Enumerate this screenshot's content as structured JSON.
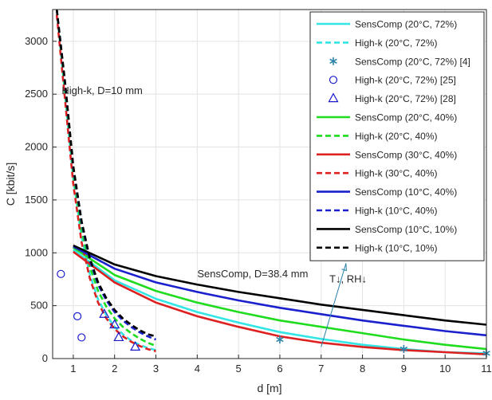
{
  "chart_data": {
    "type": "line",
    "xlabel": "d [m]",
    "ylabel": "C [kbit/s]",
    "xlim": [
      0.5,
      11
    ],
    "ylim": [
      0,
      3300
    ],
    "xticks": [
      1,
      2,
      3,
      4,
      5,
      6,
      7,
      8,
      9,
      10,
      11
    ],
    "yticks": [
      0,
      500,
      1000,
      1500,
      2000,
      2500,
      3000
    ],
    "grid": true,
    "legend_position": "top-right",
    "series": [
      {
        "name": "SensComp (20°C, 72%)",
        "color": "#33e5e5",
        "style": "solid",
        "x": [
          1,
          2,
          3,
          4,
          5,
          6,
          7,
          8,
          9,
          10,
          11
        ],
        "y": [
          1030,
          740,
          565,
          440,
          340,
          250,
          185,
          130,
          90,
          60,
          50
        ]
      },
      {
        "name": "High-k (20°C, 72%)",
        "color": "#33e5e5",
        "style": "dashed",
        "x": [
          0.6,
          0.8,
          1.0,
          1.2,
          1.4,
          1.6,
          1.8,
          2.0,
          2.2,
          2.4,
          2.6,
          2.8,
          3.0
        ],
        "y": [
          3300,
          2500,
          1700,
          1150,
          800,
          560,
          410,
          300,
          230,
          170,
          130,
          100,
          80
        ]
      },
      {
        "name": "SensComp (20°C, 72%) [4]",
        "color": "#2a82a8",
        "style": "star",
        "x": [
          6,
          9,
          11
        ],
        "y": [
          180,
          90,
          50
        ]
      },
      {
        "name": "High-k (20°C, 72%) [25]",
        "color": "#1a1acc",
        "style": "circle",
        "x": [
          0.7,
          1.1,
          1.2
        ],
        "y": [
          800,
          400,
          200
        ]
      },
      {
        "name": "High-k (20°C, 72%) [28]",
        "color": "#1a1acc",
        "style": "triangle",
        "x": [
          1.75,
          2.0,
          2.1,
          2.5
        ],
        "y": [
          420,
          320,
          200,
          110
        ]
      },
      {
        "name": "SensComp (20°C, 40%)",
        "color": "#1fdc1f",
        "style": "solid",
        "x": [
          1,
          2,
          3,
          4,
          5,
          6,
          7,
          8,
          9,
          10,
          11
        ],
        "y": [
          1050,
          790,
          640,
          530,
          440,
          360,
          300,
          240,
          180,
          130,
          90
        ]
      },
      {
        "name": "High-k (20°C, 40%)",
        "color": "#1fdc1f",
        "style": "dashed",
        "x": [
          0.6,
          0.8,
          1.0,
          1.2,
          1.4,
          1.6,
          1.8,
          2.0,
          2.2,
          2.4,
          2.6,
          2.8,
          3.0
        ],
        "y": [
          3300,
          2550,
          1750,
          1220,
          870,
          640,
          490,
          380,
          300,
          240,
          190,
          150,
          120
        ]
      },
      {
        "name": "SensComp (30°C, 40%)",
        "color": "#dd2020",
        "style": "solid",
        "x": [
          1,
          2,
          3,
          4,
          5,
          6,
          7,
          8,
          9,
          10,
          11
        ],
        "y": [
          1010,
          720,
          530,
          400,
          300,
          210,
          150,
          110,
          80,
          60,
          40
        ]
      },
      {
        "name": "High-k (30°C, 40%)",
        "color": "#dd2020",
        "style": "dashed",
        "x": [
          0.6,
          0.8,
          1.0,
          1.2,
          1.4,
          1.6,
          1.8,
          2.0,
          2.2,
          2.4,
          2.6,
          2.8,
          3.0
        ],
        "y": [
          3250,
          2450,
          1650,
          1100,
          760,
          530,
          380,
          280,
          210,
          160,
          120,
          90,
          70
        ]
      },
      {
        "name": "SensComp (10°C, 40%)",
        "color": "#1a20cc",
        "style": "solid",
        "x": [
          1,
          2,
          3,
          4,
          5,
          6,
          7,
          8,
          9,
          10,
          11
        ],
        "y": [
          1060,
          850,
          720,
          630,
          550,
          480,
          420,
          360,
          310,
          260,
          220
        ]
      },
      {
        "name": "High-k (10°C, 40%)",
        "color": "#1a20cc",
        "style": "dashed",
        "x": [
          0.6,
          0.8,
          1.0,
          1.2,
          1.4,
          1.6,
          1.8,
          2.0,
          2.2,
          2.4,
          2.6,
          2.8,
          3.0
        ],
        "y": [
          3300,
          2600,
          1800,
          1280,
          930,
          700,
          550,
          440,
          360,
          300,
          250,
          210,
          180
        ]
      },
      {
        "name": "SensComp (10°C, 10%)",
        "color": "#000000",
        "style": "solid",
        "x": [
          1,
          2,
          3,
          4,
          5,
          6,
          7,
          8,
          9,
          10,
          11
        ],
        "y": [
          1070,
          890,
          780,
          700,
          630,
          570,
          510,
          460,
          410,
          360,
          320
        ]
      },
      {
        "name": "High-k (10°C, 10%)",
        "color": "#000000",
        "style": "dashed",
        "x": [
          0.6,
          0.8,
          1.0,
          1.2,
          1.4,
          1.6,
          1.8,
          2.0,
          2.2,
          2.4,
          2.6,
          2.8,
          3.0
        ],
        "y": [
          3300,
          2620,
          1820,
          1300,
          950,
          720,
          570,
          460,
          380,
          320,
          270,
          230,
          210
        ]
      }
    ],
    "annotations": [
      {
        "id": "highk",
        "text": "High-k, D=10 mm",
        "x": 0.72,
        "y": 2500
      },
      {
        "id": "senscomp",
        "text": "SensComp, D=38.4 mm",
        "x": 4.0,
        "y": 770
      },
      {
        "id": "trend",
        "text": "T↓, RH↓",
        "x": 7.2,
        "y": 720
      }
    ],
    "trend_arrow": {
      "from": [
        7.0,
        110
      ],
      "to": [
        7.6,
        900
      ],
      "color": "#2a82a8"
    }
  }
}
